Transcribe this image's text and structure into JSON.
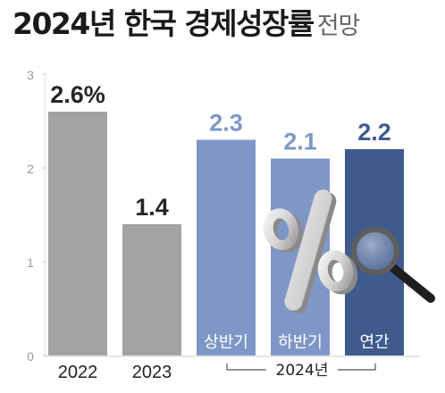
{
  "title": {
    "main": "2024년 한국 경제성장률",
    "sub": "전망"
  },
  "colors": {
    "actual": "#a3a3a3",
    "half": "#7f97c7",
    "annual": "#3f5b8e",
    "actual_label": "#262626",
    "forecast_label": "#7f97c7",
    "annual_label": "#3f5b8e"
  },
  "chart_data": {
    "type": "bar",
    "ylim": [
      0,
      3
    ],
    "yticks": [
      0,
      1,
      2,
      3
    ],
    "grid": false,
    "legend": "none",
    "bars": [
      {
        "value": 2.6,
        "label": "2.6%",
        "category": "2022",
        "inner_label": "",
        "kind": "actual"
      },
      {
        "value": 1.4,
        "label": "1.4",
        "category": "2023",
        "inner_label": "",
        "kind": "actual"
      },
      {
        "value": 2.3,
        "label": "2.3",
        "category": "",
        "inner_label": "상반기",
        "kind": "half"
      },
      {
        "value": 2.1,
        "label": "2.1",
        "category": "",
        "inner_label": "하반기",
        "kind": "half"
      },
      {
        "value": 2.2,
        "label": "2.2",
        "category": "",
        "inner_label": "연간",
        "kind": "annual"
      }
    ],
    "group_label": "2024년",
    "decoration": [
      "percent-icon",
      "magnifier-icon"
    ]
  }
}
